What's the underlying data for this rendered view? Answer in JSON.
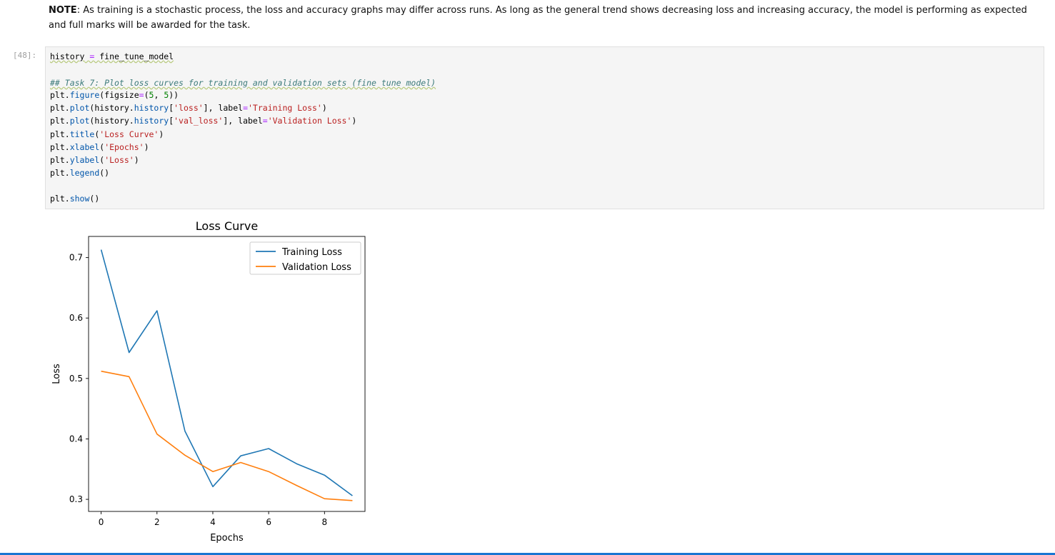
{
  "note": {
    "label": "NOTE",
    "text": ": As training is a stochastic process, the loss and accuracy graphs may differ across runs. As long as the general trend shows decreasing loss and increasing accuracy, the model is performing as expected and full marks will be awarded for the task."
  },
  "cell": {
    "prompt": "[48]:",
    "lines": {
      "l1_var": "history",
      "l1_eq": " = ",
      "l1_val": "fine_tune_model",
      "l3": "## Task 7: Plot loss curves for training and validation sets (fine tune model)",
      "l4_a": "plt.",
      "l4_fn": "figure",
      "l4_b": "(figsize",
      "l4_eq": "=",
      "l4_c": "(",
      "l4_n1": "5",
      "l4_d": ", ",
      "l4_n2": "5",
      "l4_e": "))",
      "l5_a": "plt.",
      "l5_fn": "plot",
      "l5_b": "(history.",
      "l5_attr": "history",
      "l5_c": "[",
      "l5_s": "'loss'",
      "l5_d": "], label",
      "l5_eq": "=",
      "l5_s2": "'Training Loss'",
      "l5_e": ")",
      "l6_a": "plt.",
      "l6_fn": "plot",
      "l6_b": "(history.",
      "l6_attr": "history",
      "l6_c": "[",
      "l6_s": "'val_loss'",
      "l6_d": "], label",
      "l6_eq": "=",
      "l6_s2": "'Validation Loss'",
      "l6_e": ")",
      "l7_a": "plt.",
      "l7_fn": "title",
      "l7_b": "(",
      "l7_s": "'Loss Curve'",
      "l7_c": ")",
      "l8_a": "plt.",
      "l8_fn": "xlabel",
      "l8_b": "(",
      "l8_s": "'Epochs'",
      "l8_c": ")",
      "l9_a": "plt.",
      "l9_fn": "ylabel",
      "l9_b": "(",
      "l9_s": "'Loss'",
      "l9_c": ")",
      "l10_a": "plt.",
      "l10_fn": "legend",
      "l10_b": "()",
      "l12_a": "plt.",
      "l12_fn": "show",
      "l12_b": "()"
    }
  },
  "chart_data": {
    "type": "line",
    "title": "Loss Curve",
    "xlabel": "Epochs",
    "ylabel": "Loss",
    "x": [
      0,
      1,
      2,
      3,
      4,
      5,
      6,
      7,
      8,
      9
    ],
    "xlim": [
      -0.45,
      9.45
    ],
    "ylim": [
      0.28,
      0.735
    ],
    "xticks": [
      0,
      2,
      4,
      6,
      8
    ],
    "yticks": [
      0.3,
      0.4,
      0.5,
      0.6,
      0.7
    ],
    "legend_position": "top-right",
    "grid": false,
    "series": [
      {
        "name": "Training Loss",
        "color": "#1f77b4",
        "values": [
          0.713,
          0.543,
          0.612,
          0.413,
          0.321,
          0.372,
          0.384,
          0.359,
          0.34,
          0.306
        ]
      },
      {
        "name": "Validation Loss",
        "color": "#ff7f0e",
        "values": [
          0.512,
          0.503,
          0.408,
          0.373,
          0.346,
          0.361,
          0.346,
          0.323,
          0.301,
          0.298
        ]
      }
    ]
  }
}
